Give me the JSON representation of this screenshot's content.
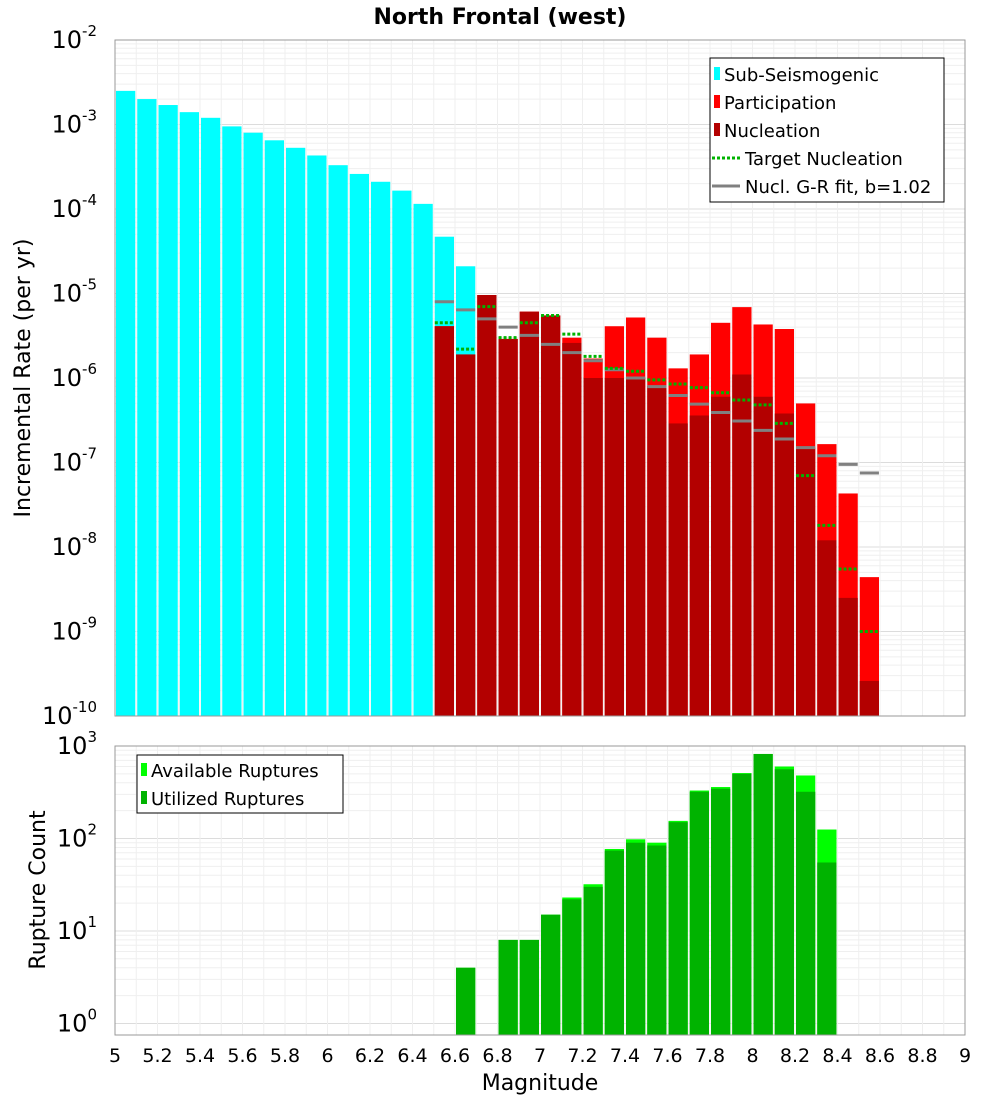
{
  "chart_data": [
    {
      "type": "bar",
      "title": "North Frontal (west)",
      "xlabel": "",
      "ylabel": "Incremental Rate (per yr)",
      "yscale": "log",
      "xlim": [
        5,
        9
      ],
      "ylim": [
        1e-10,
        0.01
      ],
      "grid": true,
      "legend_position": "top-right",
      "ytick_exponents": [
        "-10",
        "-9",
        "-8",
        "-7",
        "-6",
        "-5",
        "-4",
        "-3",
        "-2"
      ],
      "x": [
        5.05,
        5.15,
        5.25,
        5.35,
        5.45,
        5.55,
        5.65,
        5.75,
        5.85,
        5.95,
        6.05,
        6.15,
        6.25,
        6.35,
        6.45,
        6.55,
        6.65,
        6.75,
        6.85,
        6.95,
        7.05,
        7.15,
        7.25,
        7.35,
        7.45,
        7.55,
        7.65,
        7.75,
        7.85,
        7.95,
        8.05,
        8.15,
        8.25,
        8.35,
        8.45,
        8.55
      ],
      "series": [
        {
          "name": "Sub-Seismogenic",
          "color": "#00ffff",
          "values": [
            0.0025,
            0.002,
            0.0017,
            0.0014,
            0.0012,
            0.00095,
            0.0008,
            0.00065,
            0.00053,
            0.00043,
            0.00033,
            0.00026,
            0.00021,
            0.000165,
            0.000115,
            4.7e-05,
            2.1e-05,
            null,
            null,
            null,
            null,
            null,
            null,
            null,
            null,
            null,
            null,
            null,
            null,
            null,
            null,
            null,
            null,
            null,
            null,
            null
          ]
        },
        {
          "name": "Participation",
          "color": "#ff0000",
          "values": [
            null,
            null,
            null,
            null,
            null,
            null,
            null,
            null,
            null,
            null,
            null,
            null,
            null,
            null,
            null,
            4.1e-06,
            1.9e-06,
            9.6e-06,
            2.9e-06,
            6.1e-06,
            5.5e-06,
            3e-06,
            1.7e-06,
            4.1e-06,
            5.2e-06,
            3e-06,
            1.3e-06,
            1.9e-06,
            4.5e-06,
            6.9e-06,
            4.3e-06,
            3.8e-06,
            5e-07,
            1.65e-07,
            4.3e-08,
            4.4e-09
          ]
        },
        {
          "name": "Nucleation",
          "color": "#b30000",
          "values": [
            null,
            null,
            null,
            null,
            null,
            null,
            null,
            null,
            null,
            null,
            null,
            null,
            null,
            null,
            null,
            4.1e-06,
            1.9e-06,
            9.6e-06,
            2.9e-06,
            6.1e-06,
            5.5e-06,
            2.6e-06,
            1e-06,
            1e-06,
            1e-06,
            8e-07,
            2.9e-07,
            3.6e-07,
            6e-07,
            1.1e-06,
            6e-07,
            3.8e-07,
            1.5e-07,
            1.2e-08,
            2.5e-09,
            2.6e-10
          ]
        },
        {
          "name": "Target Nucleation",
          "color": "#00b300",
          "style": "dotted",
          "values": [
            null,
            null,
            null,
            null,
            null,
            null,
            null,
            null,
            null,
            null,
            null,
            null,
            null,
            null,
            null,
            4.5e-06,
            2.2e-06,
            7e-06,
            3e-06,
            4.5e-06,
            5.5e-06,
            3.3e-06,
            1.8e-06,
            1.3e-06,
            1.2e-06,
            9.5e-07,
            8.5e-07,
            7.7e-07,
            6.7e-07,
            5.5e-07,
            4.8e-07,
            2.9e-07,
            7e-08,
            1.8e-08,
            5.5e-09,
            1e-09
          ]
        },
        {
          "name": "Nucl. G-R fit, b=1.02",
          "color": "#808080",
          "values": [
            null,
            null,
            null,
            null,
            null,
            null,
            null,
            null,
            null,
            null,
            null,
            null,
            null,
            null,
            null,
            8e-06,
            6.4e-06,
            5e-06,
            4e-06,
            3.2e-06,
            2.5e-06,
            2e-06,
            1.6e-06,
            1.25e-06,
            1e-06,
            7.9e-07,
            6.2e-07,
            4.9e-07,
            3.9e-07,
            3.1e-07,
            2.4e-07,
            1.9e-07,
            1.5e-07,
            1.2e-07,
            9.5e-08,
            7.5e-08
          ]
        }
      ]
    },
    {
      "type": "bar",
      "title": "",
      "xlabel": "Magnitude",
      "ylabel": "Rupture Count",
      "yscale": "log",
      "xlim": [
        5,
        9
      ],
      "ylim": [
        0.75,
        1000
      ],
      "grid": true,
      "legend_position": "top-left",
      "ytick_exponents": [
        "0",
        "1",
        "2",
        "3"
      ],
      "xticks": [
        "5",
        "5.2",
        "5.4",
        "5.6",
        "5.8",
        "6",
        "6.2",
        "6.4",
        "6.6",
        "6.8",
        "7",
        "7.2",
        "7.4",
        "7.6",
        "7.8",
        "8",
        "8.2",
        "8.4",
        "8.6",
        "8.8",
        "9"
      ],
      "x": [
        6.65,
        6.75,
        6.85,
        6.95,
        7.05,
        7.15,
        7.25,
        7.35,
        7.45,
        7.55,
        7.65,
        7.75,
        7.85,
        7.95,
        8.05,
        8.15,
        8.25,
        8.35
      ],
      "series": [
        {
          "name": "Available Ruptures",
          "color": "#00ff00",
          "values": [
            4,
            null,
            8,
            8,
            15,
            23,
            32,
            77,
            98,
            90,
            155,
            330,
            360,
            510,
            820,
            600,
            480,
            125
          ]
        },
        {
          "name": "Utilized Ruptures",
          "color": "#00b300",
          "values": [
            4,
            null,
            8,
            8,
            15,
            22,
            30,
            74,
            90,
            84,
            150,
            320,
            345,
            500,
            820,
            560,
            320,
            55
          ]
        }
      ]
    }
  ]
}
